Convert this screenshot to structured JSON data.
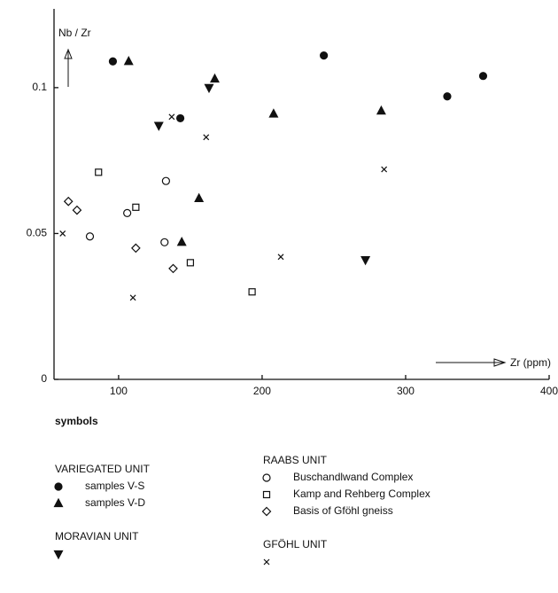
{
  "chart_data": {
    "type": "scatter",
    "y_label": "Nb / Zr",
    "x_label": "Zr (ppm)",
    "xlim": [
      55,
      400
    ],
    "ylim": [
      0,
      0.127
    ],
    "xticks": [
      100,
      200,
      300,
      400
    ],
    "yticks": [
      0,
      0.05,
      0.1
    ],
    "legend_title": "symbols",
    "groups": [
      {
        "title": "VARIEGATED UNIT",
        "series": [
          {
            "name": "samples V-S",
            "marker": "circle-filled",
            "x": [
              96,
              143,
              243,
              329,
              354
            ],
            "y": [
              0.109,
              0.0895,
              0.111,
              0.097,
              0.104
            ]
          },
          {
            "name": "samples V-D",
            "marker": "triangle",
            "x": [
              107,
              167,
              208,
              283,
              156,
              144
            ],
            "y": [
              0.109,
              0.103,
              0.091,
              0.092,
              0.062,
              0.047
            ]
          }
        ]
      },
      {
        "title": "RAABS UNIT",
        "series": [
          {
            "name": "Buschandlwand Complex",
            "marker": "circle-open",
            "x": [
              80,
              106,
              133,
              132
            ],
            "y": [
              0.049,
              0.057,
              0.068,
              0.047
            ]
          },
          {
            "name": "Kamp and Rehberg Complex",
            "marker": "square-open",
            "x": [
              86,
              112,
              150,
              193
            ],
            "y": [
              0.071,
              0.059,
              0.04,
              0.03
            ]
          },
          {
            "name": "Basis of Gföhl gneiss",
            "marker": "diamond-open",
            "x": [
              65,
              71,
              112,
              138
            ],
            "y": [
              0.061,
              0.058,
              0.045,
              0.038
            ]
          }
        ]
      },
      {
        "title": "MORAVIAN UNIT",
        "series": [
          {
            "marker": "triangle-down",
            "x": [
              128,
              163,
              272
            ],
            "y": [
              0.087,
              0.1,
              0.041
            ]
          }
        ]
      },
      {
        "title": "GFÖHL UNIT",
        "series": [
          {
            "marker": "x",
            "x": [
              61,
              137,
              161,
              110,
              213,
              285
            ],
            "y": [
              0.05,
              0.09,
              0.083,
              0.028,
              0.042,
              0.072
            ]
          }
        ]
      }
    ]
  }
}
